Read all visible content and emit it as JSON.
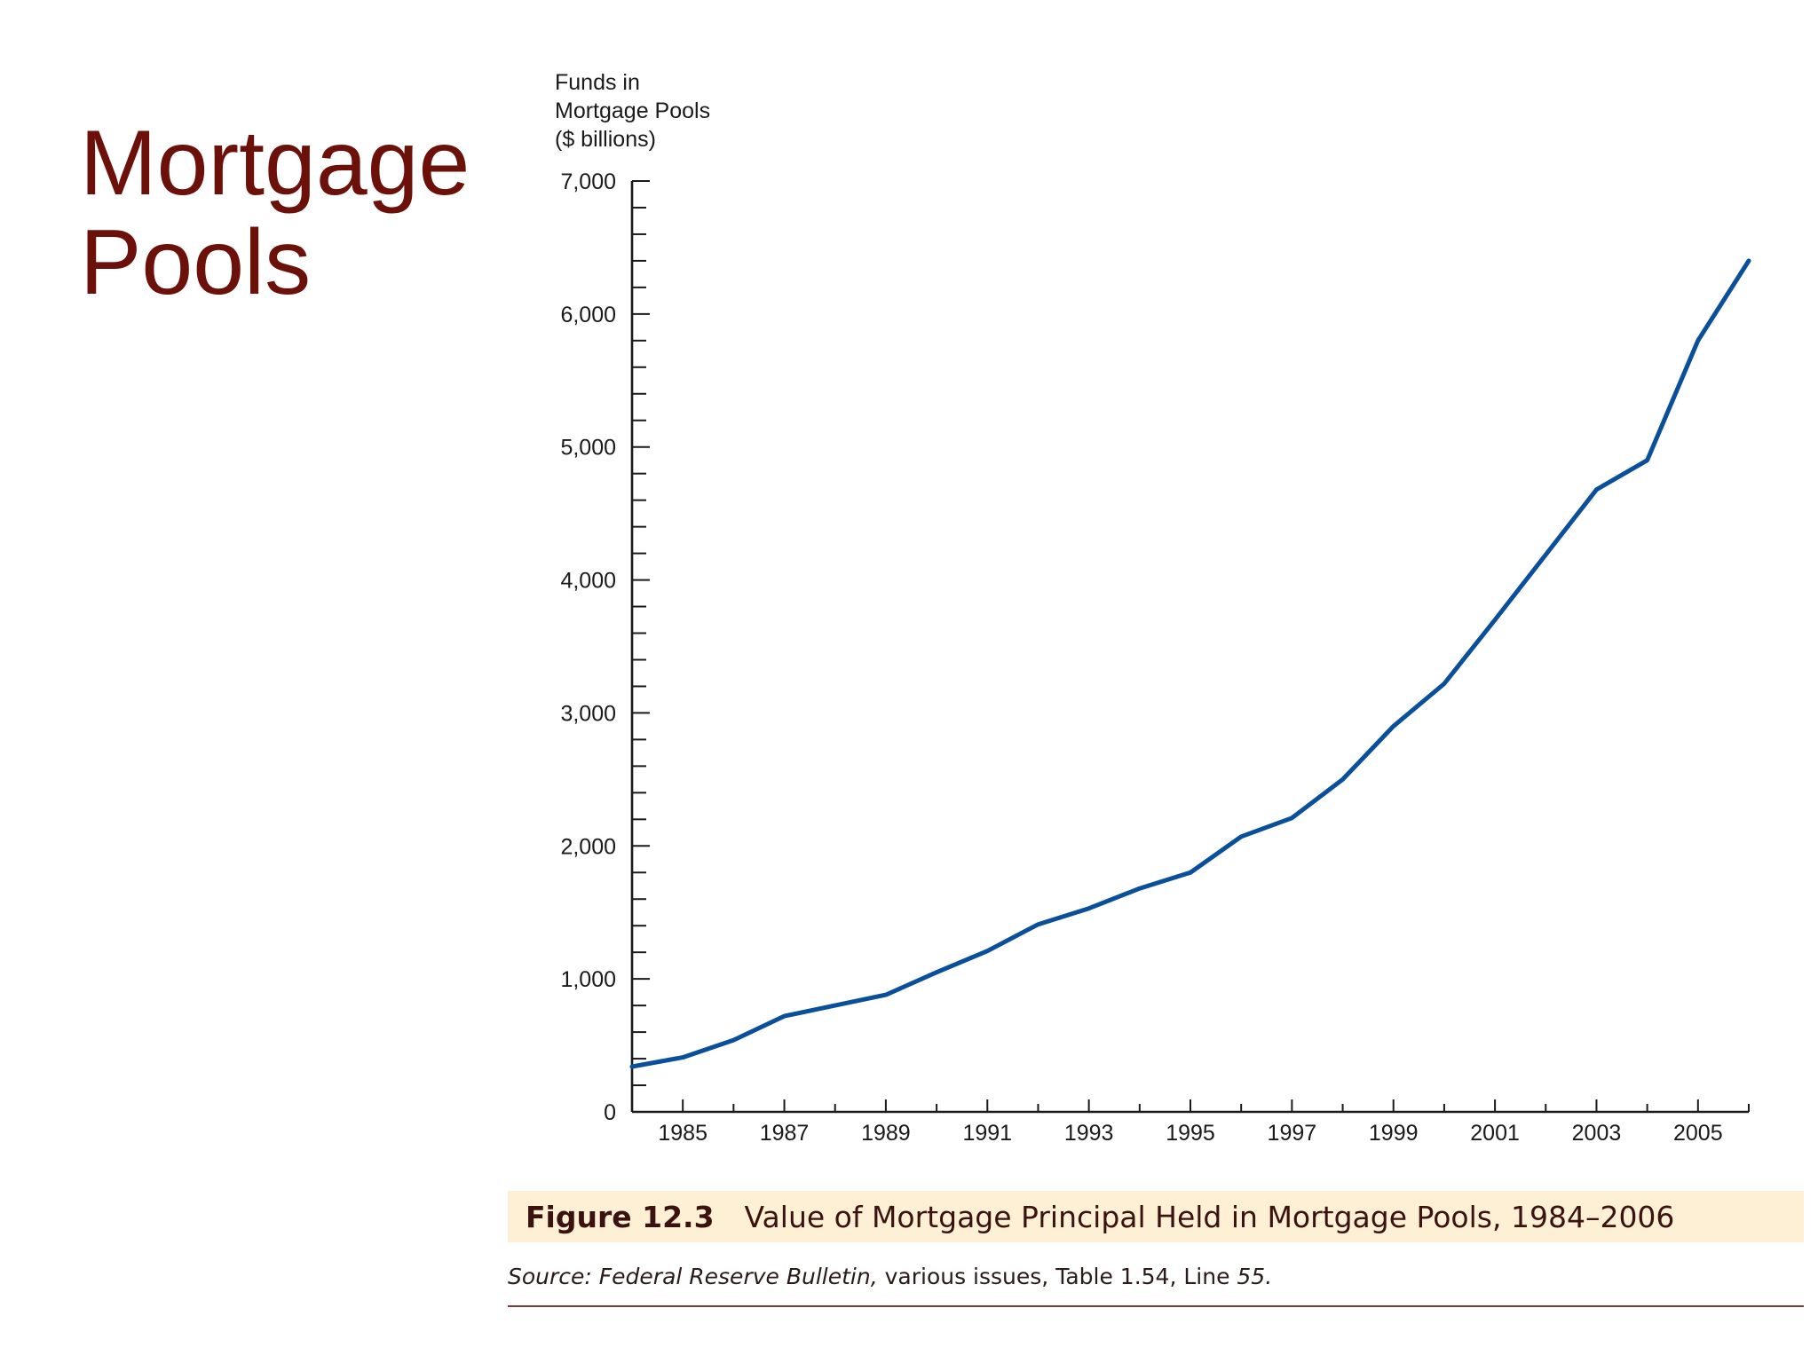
{
  "slide": {
    "title_line1": "Mortgage",
    "title_line2": "Pools"
  },
  "figure": {
    "label": "Figure 12.3",
    "caption": "Value of Mortgage Principal Held in Mortgage Pools, 1984–2006",
    "source_italic_prefix": "Source: Federal Reserve Bulletin,",
    "source_rest": " various issues, Table 1.54, Line ",
    "source_italic_end": "55."
  },
  "chart_data": {
    "type": "line",
    "ylabel_lines": [
      "Funds in",
      "Mortgage Pools",
      "($ billions)"
    ],
    "xlabel": "",
    "xlim": [
      1984,
      2006
    ],
    "ylim": [
      0,
      7000
    ],
    "x_tick_labels": [
      "1985",
      "1987",
      "1989",
      "1991",
      "1993",
      "1995",
      "1997",
      "1999",
      "2001",
      "2003",
      "2005"
    ],
    "y_tick_labels": [
      "0",
      "1,000",
      "2,000",
      "3,000",
      "4,000",
      "5,000",
      "6,000",
      "7,000"
    ],
    "grid": false,
    "series_color": "#0a4f9c",
    "x": [
      1984,
      1985,
      1986,
      1987,
      1988,
      1989,
      1990,
      1991,
      1992,
      1993,
      1994,
      1995,
      1996,
      1997,
      1998,
      1999,
      2000,
      2001,
      2002,
      2003,
      2004,
      2005,
      2006
    ],
    "series": [
      {
        "values": [
          340,
          410,
          540,
          720,
          800,
          880,
          1050,
          1210,
          1410,
          1530,
          1680,
          1800,
          2070,
          2210,
          2500,
          2900,
          3220,
          3700,
          4190,
          4680,
          4900,
          5800,
          6400
        ]
      }
    ]
  }
}
